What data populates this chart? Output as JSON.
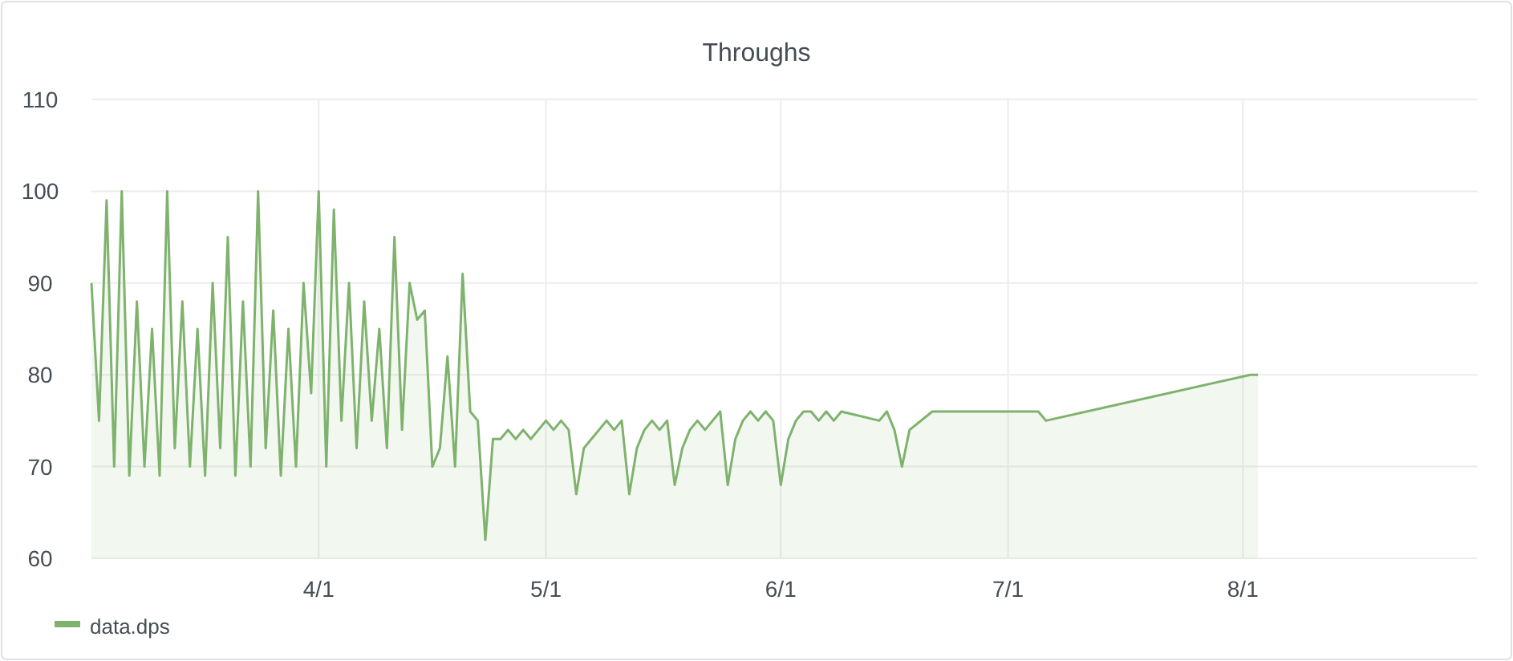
{
  "chart_data": {
    "type": "area",
    "title": "Throughs",
    "x": [
      "--03-02",
      "--03-03",
      "--03-04",
      "--03-05",
      "--03-06",
      "--03-07",
      "--03-08",
      "--03-09",
      "--03-10",
      "--03-11",
      "--03-12",
      "--03-13",
      "--03-14",
      "--03-15",
      "--03-16",
      "--03-17",
      "--03-18",
      "--03-19",
      "--03-20",
      "--03-21",
      "--03-22",
      "--03-23",
      "--03-24",
      "--03-25",
      "--03-26",
      "--03-27",
      "--03-28",
      "--03-29",
      "--03-30",
      "--03-31",
      "--04-01",
      "--04-02",
      "--04-03",
      "--04-04",
      "--04-05",
      "--04-06",
      "--04-07",
      "--04-08",
      "--04-09",
      "--04-10",
      "--04-11",
      "--04-12",
      "--04-13",
      "--04-14",
      "--04-15",
      "--04-16",
      "--04-17",
      "--04-18",
      "--04-19",
      "--04-20",
      "--04-21",
      "--04-22",
      "--04-23",
      "--04-24",
      "--04-25",
      "--04-26",
      "--04-27",
      "--04-28",
      "--04-29",
      "--04-30",
      "--05-01",
      "--05-02",
      "--05-03",
      "--05-04",
      "--05-05",
      "--05-06",
      "--05-07",
      "--05-08",
      "--05-09",
      "--05-10",
      "--05-11",
      "--05-12",
      "--05-13",
      "--05-14",
      "--05-15",
      "--05-16",
      "--05-17",
      "--05-18",
      "--05-19",
      "--05-20",
      "--05-21",
      "--05-22",
      "--05-23",
      "--05-24",
      "--05-25",
      "--05-26",
      "--05-27",
      "--05-28",
      "--05-29",
      "--05-30",
      "--05-31",
      "--06-01",
      "--06-02",
      "--06-03",
      "--06-04",
      "--06-05",
      "--06-06",
      "--06-07",
      "--06-08",
      "--06-09",
      "--06-14",
      "--06-15",
      "--06-16",
      "--06-17",
      "--06-18",
      "--06-21",
      "--07-05",
      "--07-06",
      "--08-02",
      "--08-03"
    ],
    "series": [
      {
        "name": "data.dps",
        "color": "#7eb26d",
        "values": [
          90,
          75,
          99,
          70,
          100,
          69,
          88,
          70,
          85,
          69,
          100,
          72,
          88,
          70,
          85,
          69,
          90,
          72,
          95,
          69,
          88,
          70,
          100,
          72,
          87,
          69,
          85,
          70,
          90,
          78,
          100,
          70,
          98,
          75,
          90,
          72,
          88,
          75,
          85,
          72,
          95,
          74,
          90,
          86,
          87,
          70,
          72,
          82,
          70,
          91,
          76,
          75,
          62,
          73,
          73,
          74,
          73,
          74,
          73,
          74,
          75,
          74,
          75,
          74,
          67,
          72,
          73,
          74,
          75,
          74,
          75,
          67,
          72,
          74,
          75,
          74,
          75,
          68,
          72,
          74,
          75,
          74,
          75,
          76,
          68,
          73,
          75,
          76,
          75,
          76,
          75,
          68,
          73,
          75,
          76,
          76,
          75,
          76,
          75,
          76,
          75,
          76,
          74,
          70,
          74,
          76,
          76,
          75,
          80,
          80
        ]
      }
    ],
    "xlim": [
      "--03-02",
      "--09-01"
    ],
    "xticks": [
      {
        "value": "--04-01",
        "label": "4/1"
      },
      {
        "value": "--05-01",
        "label": "5/1"
      },
      {
        "value": "--06-01",
        "label": "6/1"
      },
      {
        "value": "--07-01",
        "label": "7/1"
      },
      {
        "value": "--08-01",
        "label": "8/1"
      }
    ],
    "ylim": [
      60,
      110
    ],
    "yticks": [
      60,
      70,
      80,
      90,
      100,
      110
    ],
    "grid": true,
    "legend": "bottom left"
  }
}
